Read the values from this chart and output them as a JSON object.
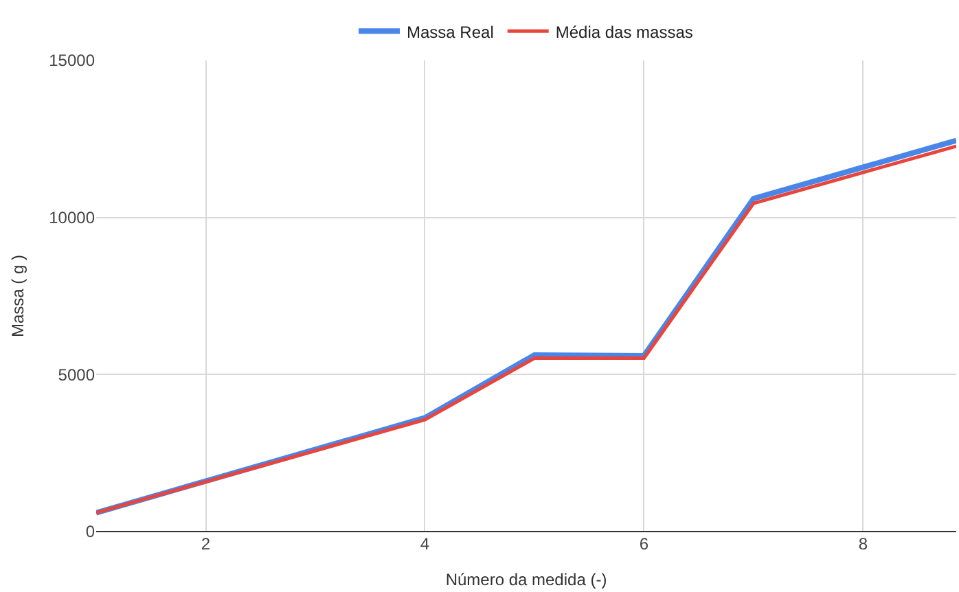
{
  "chart_data": {
    "type": "line",
    "xlabel": "Número da medida (-)",
    "ylabel": "Massa ( g )",
    "xlim": [
      1,
      8.85
    ],
    "xticks": [
      2,
      4,
      6,
      8
    ],
    "ylim": [
      0,
      15000
    ],
    "yticks": [
      0,
      5000,
      10000,
      15000
    ],
    "grid": true,
    "legend": "top",
    "marker": "none",
    "line_style": "solid",
    "series": [
      {
        "name": "Massa Real",
        "color": "#4a86e8",
        "x": [
          1,
          4,
          5,
          6,
          7,
          8.85
        ],
        "values": [
          600,
          3620,
          5620,
          5600,
          10600,
          12450
        ]
      },
      {
        "name": "Média das massas",
        "color": "#e8453c",
        "x": [
          1,
          4,
          5,
          6,
          7,
          8.85
        ],
        "values": [
          600,
          3560,
          5520,
          5520,
          10450,
          12270
        ]
      }
    ]
  }
}
